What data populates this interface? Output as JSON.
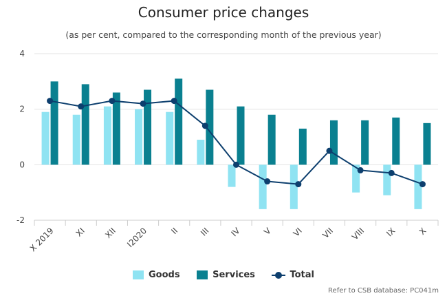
{
  "title": "Consumer price changes",
  "subtitle": "(as per cent, compared to the corresponding month of the previous year)",
  "credit": "Refer to CSB database: PC041m",
  "chart_data": {
    "type": "bar",
    "categories": [
      "X 2019",
      "XI",
      "XII",
      "I2020",
      "II",
      "III",
      "IV",
      "V",
      "VI",
      "VII",
      "VIII",
      "IX",
      "X"
    ],
    "series": [
      {
        "name": "Goods",
        "type": "bar",
        "color": "#8fe3f2",
        "values": [
          1.9,
          1.8,
          2.1,
          2.0,
          1.9,
          0.9,
          -0.8,
          -1.6,
          -1.6,
          0.0,
          -1.0,
          -1.1,
          -1.6
        ]
      },
      {
        "name": "Services",
        "type": "bar",
        "color": "#0a8090",
        "values": [
          3.0,
          2.9,
          2.6,
          2.7,
          3.1,
          2.7,
          2.1,
          1.8,
          1.3,
          1.6,
          1.6,
          1.7,
          1.5
        ]
      },
      {
        "name": "Total",
        "type": "line",
        "color": "#0d3f6e",
        "values": [
          2.3,
          2.1,
          2.3,
          2.2,
          2.3,
          1.4,
          0.0,
          -0.6,
          -0.7,
          0.5,
          -0.2,
          -0.3,
          -0.7
        ]
      }
    ],
    "yticks": [
      -2,
      0,
      2,
      4
    ],
    "ylim": [
      -2,
      4
    ],
    "grid": true,
    "legend": "bottom"
  }
}
